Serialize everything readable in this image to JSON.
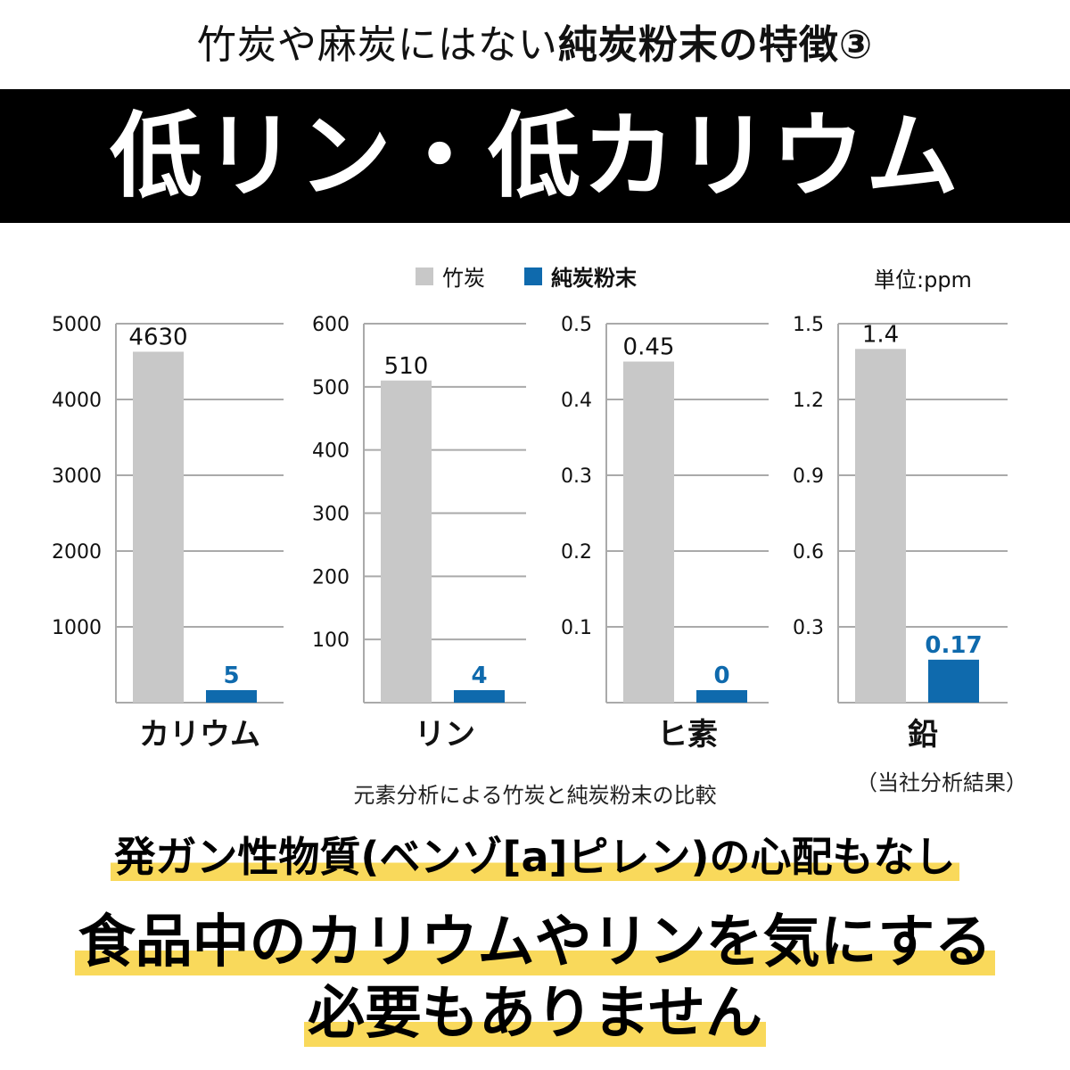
{
  "header": {
    "subtitle_plain": "竹炭や麻炭にはない",
    "subtitle_bold": "純炭粉末の特徴③",
    "title": "低リン・低カリウム"
  },
  "legend": {
    "items": [
      {
        "label": "竹炭",
        "color": "#c8c8c8"
      },
      {
        "label": "純炭粉末",
        "color": "#0f6aad"
      }
    ],
    "unit": "単位:ppm"
  },
  "chart_data": [
    {
      "type": "bar",
      "category": "カリウム",
      "ylim": [
        0,
        5000
      ],
      "ticks": [
        "1000",
        "2000",
        "3000",
        "4000",
        "5000"
      ],
      "series": [
        {
          "name": "竹炭",
          "value": 4630,
          "label": "4630"
        },
        {
          "name": "純炭粉末",
          "value": 5,
          "label": "5"
        }
      ]
    },
    {
      "type": "bar",
      "category": "リン",
      "ylim": [
        0,
        600
      ],
      "ticks": [
        "100",
        "200",
        "300",
        "400",
        "500",
        "600"
      ],
      "series": [
        {
          "name": "竹炭",
          "value": 510,
          "label": "510"
        },
        {
          "name": "純炭粉末",
          "value": 4,
          "label": "4"
        }
      ]
    },
    {
      "type": "bar",
      "category": "ヒ素",
      "ylim": [
        0,
        0.5
      ],
      "ticks": [
        "0.1",
        "0.2",
        "0.3",
        "0.4",
        "0.5"
      ],
      "series": [
        {
          "name": "竹炭",
          "value": 0.45,
          "label": "0.45"
        },
        {
          "name": "純炭粉末",
          "value": 0,
          "label": "0"
        }
      ]
    },
    {
      "type": "bar",
      "category": "鉛",
      "ylim": [
        0,
        1.5
      ],
      "ticks": [
        "0.3",
        "0.6",
        "0.9",
        "1.2",
        "1.5"
      ],
      "series": [
        {
          "name": "竹炭",
          "value": 1.4,
          "label": "1.4"
        },
        {
          "name": "純炭粉末",
          "value": 0.17,
          "label": "0.17"
        }
      ]
    }
  ],
  "caption": "元素分析による竹炭と純炭粉末の比較",
  "note": "（当社分析結果）",
  "footer": {
    "line1": "発ガン性物質(ベンゾ[a]ピレン)の心配もなし",
    "line2": "食品中のカリウムやリンを気にする",
    "line3": "必要もありません"
  }
}
